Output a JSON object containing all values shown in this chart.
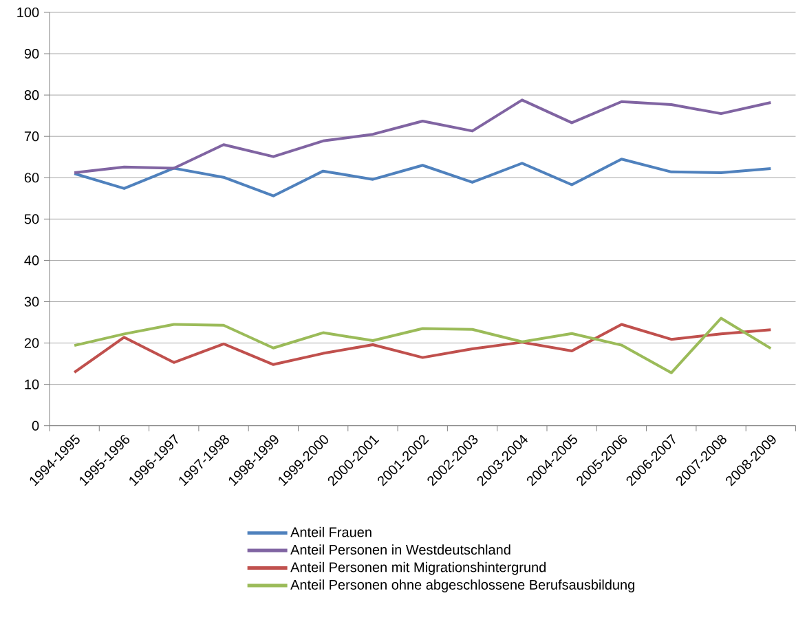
{
  "chart_data": {
    "type": "line",
    "categories": [
      "1994-1995",
      "1995-1996",
      "1996-1997",
      "1997-1998",
      "1998-1999",
      "1999-2000",
      "2000-2001",
      "2001-2002",
      "2002-2003",
      "2003-2004",
      "2004-2005",
      "2005-2006",
      "2006-2007",
      "2007-2008",
      "2008-2009"
    ],
    "series": [
      {
        "name": "Anteil Frauen",
        "color": "#4f81bd",
        "values": [
          61.0,
          57.4,
          62.3,
          60.1,
          55.6,
          61.6,
          59.6,
          63.0,
          58.9,
          63.5,
          58.3,
          64.5,
          61.4,
          61.2,
          62.2
        ]
      },
      {
        "name": "Anteil Personen in Westdeutschland",
        "color": "#8064a2",
        "values": [
          61.2,
          62.6,
          62.3,
          68.0,
          65.1,
          68.9,
          70.5,
          73.7,
          71.3,
          78.8,
          73.3,
          78.4,
          77.7,
          75.5,
          78.2
        ]
      },
      {
        "name": "Anteil Personen mit Migrationshintergrund",
        "color": "#c0504d",
        "values": [
          12.9,
          21.4,
          15.3,
          19.8,
          14.8,
          17.5,
          19.6,
          16.5,
          18.6,
          20.2,
          18.1,
          24.5,
          20.9,
          22.2,
          23.2
        ]
      },
      {
        "name": "Anteil Personen ohne abgeschlossene Berufsausbildung",
        "color": "#9bbb59",
        "values": [
          19.4,
          22.2,
          24.5,
          24.3,
          18.8,
          22.5,
          20.6,
          23.5,
          23.3,
          20.3,
          22.3,
          19.5,
          12.8,
          26.0,
          18.7
        ]
      }
    ],
    "ylim": [
      0,
      100
    ],
    "yticks": [
      0,
      10,
      20,
      30,
      40,
      50,
      60,
      70,
      80,
      90,
      100
    ],
    "grid": "y",
    "legend": "bottom",
    "marker": "none",
    "line_style": "solid"
  }
}
